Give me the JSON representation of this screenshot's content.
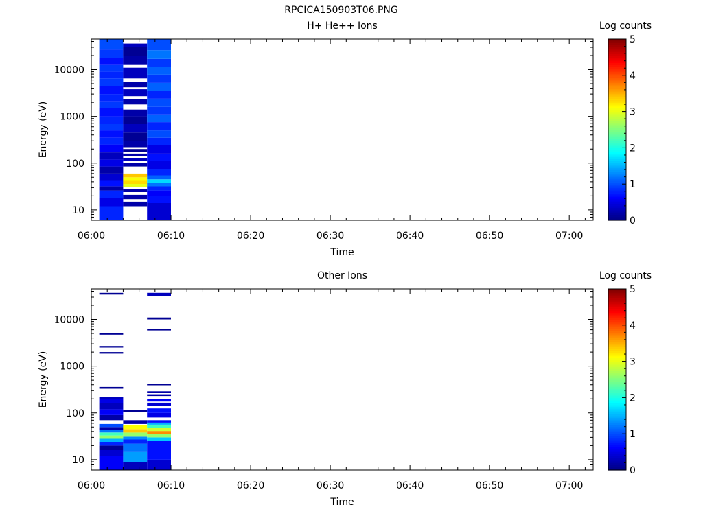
{
  "figure_title": "RPCICA150903T06.PNG",
  "chart_data": [
    {
      "type": "heatmap",
      "title": "H+ He++ Ions",
      "xlabel": "Time",
      "ylabel": "Energy (eV)",
      "x_tick_labels": [
        "06:00",
        "06:10",
        "06:20",
        "06:30",
        "06:40",
        "06:50",
        "07:00"
      ],
      "x_range": [
        "06:00",
        "07:03"
      ],
      "y_scale": "log",
      "y_tick_labels": [
        "10",
        "100",
        "1000",
        "10000"
      ],
      "y_range": [
        6,
        45000
      ],
      "colorbar": {
        "label": "Log counts",
        "range": [
          0,
          5
        ],
        "tick_labels": [
          "0",
          "1",
          "2",
          "3",
          "4",
          "5"
        ]
      },
      "columns": [
        {
          "start": "06:01",
          "end": "06:04",
          "bins": [
            {
              "e_low": 6,
              "e_high": 12,
              "value": 0.8
            },
            {
              "e_low": 12,
              "e_high": 18,
              "value": 0.5
            },
            {
              "e_low": 18,
              "e_high": 26,
              "value": 0.8
            },
            {
              "e_low": 26,
              "e_high": 32,
              "value": 0.2
            },
            {
              "e_low": 32,
              "e_high": 42,
              "value": 0.7
            },
            {
              "e_low": 42,
              "e_high": 60,
              "value": 0.4
            },
            {
              "e_low": 60,
              "e_high": 85,
              "value": 0.2
            },
            {
              "e_low": 85,
              "e_high": 120,
              "value": 0.5
            },
            {
              "e_low": 120,
              "e_high": 170,
              "value": 0.3
            },
            {
              "e_low": 170,
              "e_high": 250,
              "value": 0.6
            },
            {
              "e_low": 250,
              "e_high": 350,
              "value": 0.8
            },
            {
              "e_low": 350,
              "e_high": 500,
              "value": 0.7
            },
            {
              "e_low": 500,
              "e_high": 700,
              "value": 0.9
            },
            {
              "e_low": 700,
              "e_high": 1000,
              "value": 0.8
            },
            {
              "e_low": 1000,
              "e_high": 1500,
              "value": 0.7
            },
            {
              "e_low": 1500,
              "e_high": 2100,
              "value": 0.9
            },
            {
              "e_low": 2100,
              "e_high": 3000,
              "value": 0.8
            },
            {
              "e_low": 3000,
              "e_high": 4500,
              "value": 0.7
            },
            {
              "e_low": 4500,
              "e_high": 6500,
              "value": 0.9
            },
            {
              "e_low": 6500,
              "e_high": 9000,
              "value": 0.8
            },
            {
              "e_low": 9000,
              "e_high": 13000,
              "value": 0.9
            },
            {
              "e_low": 13000,
              "e_high": 18000,
              "value": 0.7
            },
            {
              "e_low": 18000,
              "e_high": 27000,
              "value": 0.9
            },
            {
              "e_low": 27000,
              "e_high": 45000,
              "value": 1.0
            }
          ]
        },
        {
          "start": "06:04",
          "end": "06:07",
          "bins": [
            {
              "e_low": 12,
              "e_high": 15,
              "value": 0.2
            },
            {
              "e_low": 17,
              "e_high": 21,
              "value": 0.2
            },
            {
              "e_low": 24,
              "e_high": 28,
              "value": 0.2
            },
            {
              "e_low": 31,
              "e_high": 36,
              "value": 3.0
            },
            {
              "e_low": 36,
              "e_high": 42,
              "value": 3.3
            },
            {
              "e_low": 42,
              "e_high": 50,
              "value": 3.1
            },
            {
              "e_low": 50,
              "e_high": 60,
              "value": 3.4
            },
            {
              "e_low": 85,
              "e_high": 100,
              "value": 0.2
            },
            {
              "e_low": 110,
              "e_high": 130,
              "value": 0.3
            },
            {
              "e_low": 140,
              "e_high": 160,
              "value": 0.2
            },
            {
              "e_low": 170,
              "e_high": 200,
              "value": 0.1
            },
            {
              "e_low": 220,
              "e_high": 300,
              "value": 0.2
            },
            {
              "e_low": 300,
              "e_high": 450,
              "value": 0.1
            },
            {
              "e_low": 450,
              "e_high": 700,
              "value": 0.3
            },
            {
              "e_low": 700,
              "e_high": 1000,
              "value": 0.1
            },
            {
              "e_low": 1000,
              "e_high": 1400,
              "value": 0.2
            },
            {
              "e_low": 1800,
              "e_high": 2300,
              "value": 0.2
            },
            {
              "e_low": 2700,
              "e_high": 3800,
              "value": 0.3
            },
            {
              "e_low": 4200,
              "e_high": 5500,
              "value": 0.2
            },
            {
              "e_low": 6500,
              "e_high": 11000,
              "value": 0.3
            },
            {
              "e_low": 13000,
              "e_high": 20000,
              "value": 0.2
            },
            {
              "e_low": 20000,
              "e_high": 30000,
              "value": 0.1
            },
            {
              "e_low": 30000,
              "e_high": 36000,
              "value": 0.3
            }
          ]
        },
        {
          "start": "06:07",
          "end": "06:10",
          "bins": [
            {
              "e_low": 6,
              "e_high": 14,
              "value": 0.4
            },
            {
              "e_low": 14,
              "e_high": 20,
              "value": 0.7
            },
            {
              "e_low": 20,
              "e_high": 26,
              "value": 0.6
            },
            {
              "e_low": 26,
              "e_high": 32,
              "value": 0.8
            },
            {
              "e_low": 32,
              "e_high": 38,
              "value": 1.2
            },
            {
              "e_low": 38,
              "e_high": 45,
              "value": 1.7
            },
            {
              "e_low": 45,
              "e_high": 55,
              "value": 1.1
            },
            {
              "e_low": 55,
              "e_high": 75,
              "value": 0.8
            },
            {
              "e_low": 75,
              "e_high": 110,
              "value": 0.5
            },
            {
              "e_low": 110,
              "e_high": 160,
              "value": 0.7
            },
            {
              "e_low": 160,
              "e_high": 240,
              "value": 0.5
            },
            {
              "e_low": 240,
              "e_high": 350,
              "value": 0.8
            },
            {
              "e_low": 350,
              "e_high": 500,
              "value": 1.0
            },
            {
              "e_low": 500,
              "e_high": 750,
              "value": 0.8
            },
            {
              "e_low": 750,
              "e_high": 1100,
              "value": 1.1
            },
            {
              "e_low": 1100,
              "e_high": 1600,
              "value": 0.9
            },
            {
              "e_low": 1600,
              "e_high": 2400,
              "value": 1.0
            },
            {
              "e_low": 2400,
              "e_high": 3500,
              "value": 0.8
            },
            {
              "e_low": 3500,
              "e_high": 5200,
              "value": 1.1
            },
            {
              "e_low": 5200,
              "e_high": 7800,
              "value": 0.9
            },
            {
              "e_low": 7800,
              "e_high": 11500,
              "value": 1.1
            },
            {
              "e_low": 11500,
              "e_high": 17000,
              "value": 0.9
            },
            {
              "e_low": 17000,
              "e_high": 26000,
              "value": 1.2
            },
            {
              "e_low": 26000,
              "e_high": 45000,
              "value": 1.0
            }
          ]
        }
      ]
    },
    {
      "type": "heatmap",
      "title": "Other Ions",
      "xlabel": "Time",
      "ylabel": "Energy (eV)",
      "x_tick_labels": [
        "06:00",
        "06:10",
        "06:20",
        "06:30",
        "06:40",
        "06:50",
        "07:00"
      ],
      "x_range": [
        "06:00",
        "07:03"
      ],
      "y_scale": "log",
      "y_tick_labels": [
        "10",
        "100",
        "1000",
        "10000"
      ],
      "y_range": [
        6,
        45000
      ],
      "colorbar": {
        "label": "Log counts",
        "range": [
          0,
          5
        ],
        "tick_labels": [
          "0",
          "1",
          "2",
          "3",
          "4",
          "5"
        ]
      },
      "columns": [
        {
          "start": "06:01",
          "end": "06:04",
          "bins": [
            {
              "e_low": 6,
              "e_high": 12,
              "value": 0.6
            },
            {
              "e_low": 12,
              "e_high": 16,
              "value": 0.4
            },
            {
              "e_low": 16,
              "e_high": 20,
              "value": 0.1
            },
            {
              "e_low": 20,
              "e_high": 24,
              "value": 0.8
            },
            {
              "e_low": 24,
              "e_high": 28,
              "value": 1.5
            },
            {
              "e_low": 28,
              "e_high": 33,
              "value": 2.6
            },
            {
              "e_low": 33,
              "e_high": 38,
              "value": 2.2
            },
            {
              "e_low": 38,
              "e_high": 44,
              "value": 1.2
            },
            {
              "e_low": 44,
              "e_high": 50,
              "value": 0.2
            },
            {
              "e_low": 50,
              "e_high": 58,
              "value": 1.0
            },
            {
              "e_low": 70,
              "e_high": 90,
              "value": 0.2
            },
            {
              "e_low": 90,
              "e_high": 120,
              "value": 0.6
            },
            {
              "e_low": 120,
              "e_high": 160,
              "value": 0.3
            },
            {
              "e_low": 160,
              "e_high": 200,
              "value": 0.5
            },
            {
              "e_low": 200,
              "e_high": 220,
              "value": 0.3
            },
            {
              "e_low": 330,
              "e_high": 360,
              "value": 0.1
            },
            {
              "e_low": 1850,
              "e_high": 2000,
              "value": 0.1
            },
            {
              "e_low": 2500,
              "e_high": 2700,
              "value": 0.1
            },
            {
              "e_low": 4700,
              "e_high": 5100,
              "value": 0.1
            },
            {
              "e_low": 34000,
              "e_high": 37000,
              "value": 0.1
            }
          ]
        },
        {
          "start": "06:04",
          "end": "06:07",
          "bins": [
            {
              "e_low": 6,
              "e_high": 9,
              "value": 0.3
            },
            {
              "e_low": 9,
              "e_high": 15,
              "value": 1.4
            },
            {
              "e_low": 15,
              "e_high": 22,
              "value": 1.2
            },
            {
              "e_low": 22,
              "e_high": 27,
              "value": 0.8
            },
            {
              "e_low": 27,
              "e_high": 31,
              "value": 1.3
            },
            {
              "e_low": 31,
              "e_high": 38,
              "value": 2.6
            },
            {
              "e_low": 38,
              "e_high": 45,
              "value": 3.4
            },
            {
              "e_low": 45,
              "e_high": 55,
              "value": 3.1
            },
            {
              "e_low": 58,
              "e_high": 70,
              "value": 0.2
            },
            {
              "e_low": 105,
              "e_high": 115,
              "value": 0.1
            }
          ]
        },
        {
          "start": "06:07",
          "end": "06:10",
          "bins": [
            {
              "e_low": 6,
              "e_high": 10,
              "value": 0.4
            },
            {
              "e_low": 10,
              "e_high": 25,
              "value": 0.7
            },
            {
              "e_low": 25,
              "e_high": 30,
              "value": 1.6
            },
            {
              "e_low": 30,
              "e_high": 35,
              "value": 2.6
            },
            {
              "e_low": 35,
              "e_high": 41,
              "value": 3.7
            },
            {
              "e_low": 41,
              "e_high": 48,
              "value": 2.9
            },
            {
              "e_low": 48,
              "e_high": 56,
              "value": 2.2
            },
            {
              "e_low": 56,
              "e_high": 62,
              "value": 1.5
            },
            {
              "e_low": 62,
              "e_high": 70,
              "value": 0.7
            },
            {
              "e_low": 80,
              "e_high": 100,
              "value": 0.5
            },
            {
              "e_low": 100,
              "e_high": 125,
              "value": 0.7
            },
            {
              "e_low": 140,
              "e_high": 165,
              "value": 0.4
            },
            {
              "e_low": 175,
              "e_high": 200,
              "value": 0.6
            },
            {
              "e_low": 230,
              "e_high": 250,
              "value": 0.2
            },
            {
              "e_low": 270,
              "e_high": 290,
              "value": 0.2
            },
            {
              "e_low": 390,
              "e_high": 420,
              "value": 0.1
            },
            {
              "e_low": 5800,
              "e_high": 6300,
              "value": 0.1
            },
            {
              "e_low": 10000,
              "e_high": 11000,
              "value": 0.1
            },
            {
              "e_low": 31000,
              "e_high": 37000,
              "value": 0.3
            }
          ]
        }
      ]
    }
  ]
}
